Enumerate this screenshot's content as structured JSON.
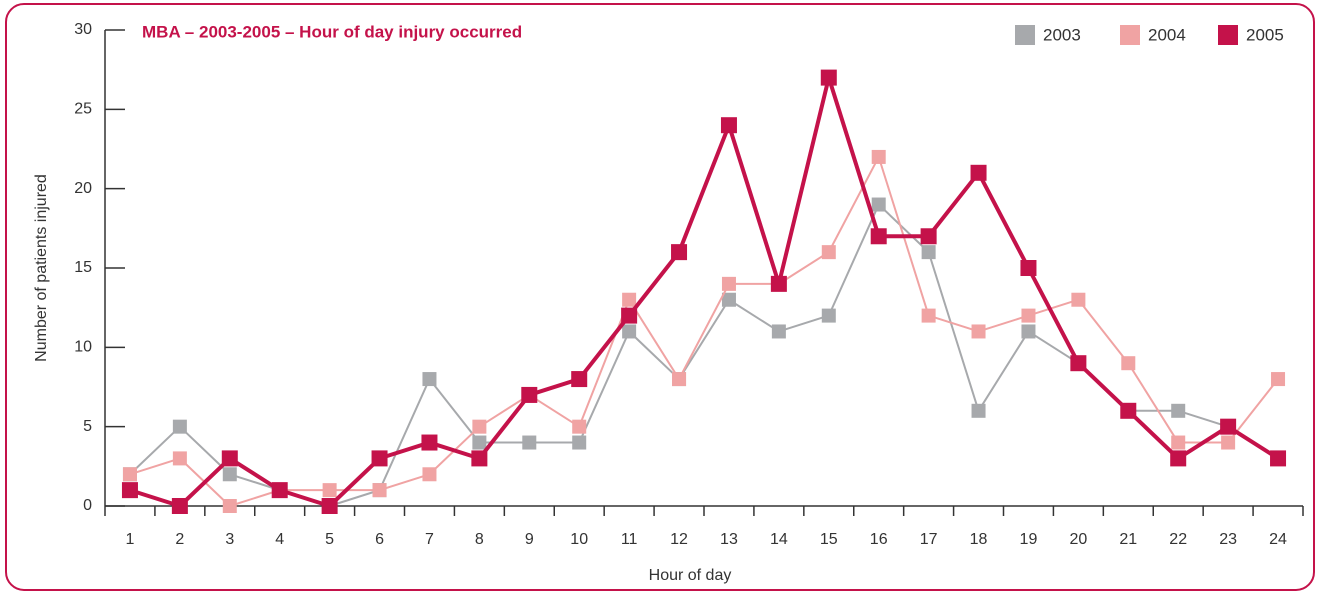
{
  "chart_data": {
    "type": "line",
    "title": "MBA – 2003-2005 – Hour of day injury occurred",
    "x_label": "Hour of day",
    "y_label": "Number of patients injured",
    "categories": [
      "1",
      "2",
      "3",
      "4",
      "5",
      "6",
      "7",
      "8",
      "9",
      "10",
      "11",
      "12",
      "13",
      "14",
      "15",
      "16",
      "17",
      "18",
      "19",
      "20",
      "21",
      "22",
      "23",
      "24"
    ],
    "series": [
      {
        "name": "2003",
        "color": "#a7a9ac",
        "values": [
          2,
          5,
          2,
          1,
          0,
          1,
          8,
          4,
          4,
          4,
          11,
          8,
          13,
          11,
          12,
          19,
          16,
          6,
          11,
          9,
          6,
          6,
          5,
          3
        ]
      },
      {
        "name": "2004",
        "color": "#f0a3a3",
        "values": [
          2,
          3,
          0,
          1,
          1,
          1,
          2,
          5,
          7,
          5,
          13,
          8,
          14,
          14,
          16,
          22,
          12,
          11,
          12,
          13,
          9,
          4,
          4,
          8
        ]
      },
      {
        "name": "2005",
        "color": "#c4124a",
        "values": [
          1,
          0,
          3,
          1,
          0,
          3,
          4,
          3,
          7,
          8,
          12,
          16,
          24,
          14,
          27,
          17,
          17,
          21,
          15,
          9,
          6,
          3,
          5,
          3
        ]
      }
    ],
    "ylim": [
      0,
      30
    ],
    "yticks": [
      0,
      5,
      10,
      15,
      20,
      25,
      30
    ],
    "legend": "upper right",
    "grid": false
  }
}
